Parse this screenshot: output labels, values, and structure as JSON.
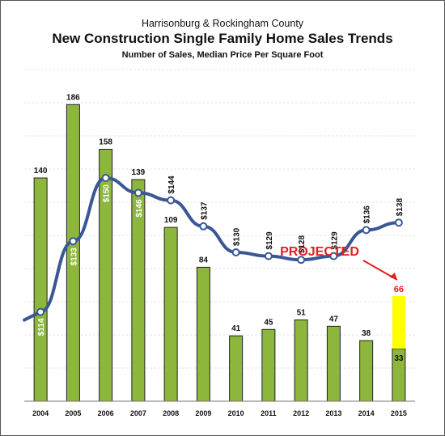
{
  "chart_data": {
    "type": "bar",
    "title_line1": "Harrisonburg & Rockingham County",
    "title": "New Construction Single Family Home Sales Trends",
    "subtitle": "Number of Sales, Median Price Per Square Foot",
    "categories": [
      "2004",
      "2005",
      "2006",
      "2007",
      "2008",
      "2009",
      "2010",
      "2011",
      "2012",
      "2013",
      "2014",
      "2015"
    ],
    "series": [
      {
        "values": [
          140,
          186,
          158,
          139,
          109,
          84,
          41,
          45,
          51,
          47,
          38,
          33
        ],
        "labels": [
          "140",
          "186",
          "158",
          "139",
          "109",
          "84",
          "41",
          "45",
          "51",
          "47",
          "38",
          "33"
        ],
        "color": "#8db63c"
      },
      {
        "type": "line",
        "values": [
          114,
          133,
          150,
          146,
          144,
          137,
          130,
          129,
          128,
          129,
          136,
          138
        ],
        "labels": [
          "$114",
          "$133",
          "$150",
          "$146",
          "$144",
          "$137",
          "$130",
          "$129",
          "$128",
          "$129",
          "$136",
          "$138"
        ],
        "color": "#3a5795"
      }
    ],
    "projected": {
      "label": "PROJECTED",
      "category": "2015",
      "value": 66,
      "value_label": "66",
      "color": "#ffff00"
    },
    "bar_ylim": [
      0,
      210
    ],
    "line_ylim": [
      90,
      180
    ],
    "grid": true
  }
}
